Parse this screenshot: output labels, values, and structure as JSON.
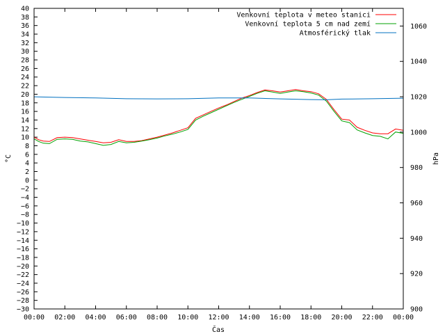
{
  "chart_data": {
    "type": "line",
    "xlabel": "Čas",
    "ylabel_left": "°C",
    "ylabel_right": "hPa",
    "x_ticks": [
      "00:00",
      "02:00",
      "04:00",
      "06:00",
      "08:00",
      "10:00",
      "12:00",
      "14:00",
      "16:00",
      "18:00",
      "20:00",
      "22:00",
      "00:00"
    ],
    "ylim_left": [
      -30,
      40
    ],
    "ylim_right": [
      900,
      1070
    ],
    "y_tick_step_left": 2,
    "y_ticks_right": [
      900,
      920,
      940,
      960,
      980,
      1000,
      1020,
      1040,
      1060
    ],
    "grid": false,
    "legend_position": "top-right",
    "series": [
      {
        "name": "Venkovní teplota v meteo stanici",
        "axis": "left",
        "color": "#ff0000",
        "x": [
          0.0,
          0.3,
          0.6,
          1.0,
          1.5,
          2.0,
          2.5,
          3.0,
          3.5,
          4.0,
          4.5,
          5.0,
          5.5,
          6.0,
          6.5,
          7.0,
          7.5,
          8.0,
          8.5,
          9.0,
          9.5,
          10.0,
          10.5,
          11.0,
          11.5,
          12.0,
          12.5,
          13.0,
          13.5,
          14.0,
          14.5,
          15.0,
          15.5,
          16.0,
          16.5,
          17.0,
          17.5,
          18.0,
          18.5,
          19.0,
          19.5,
          20.0,
          20.5,
          21.0,
          21.5,
          22.0,
          22.5,
          23.0,
          23.5,
          24.0
        ],
        "values": [
          10.0,
          9.4,
          9.1,
          9.0,
          9.9,
          10.0,
          9.9,
          9.6,
          9.3,
          9.0,
          8.7,
          8.8,
          9.4,
          9.0,
          9.0,
          9.2,
          9.6,
          10.0,
          10.5,
          11.0,
          11.6,
          12.2,
          14.4,
          15.2,
          16.0,
          16.8,
          17.5,
          18.3,
          19.1,
          19.7,
          20.4,
          21.0,
          20.8,
          20.5,
          20.8,
          21.1,
          20.8,
          20.6,
          20.1,
          18.8,
          16.4,
          14.2,
          14.0,
          12.3,
          11.6,
          11.0,
          10.8,
          10.8,
          11.9,
          11.6
        ]
      },
      {
        "name": "Venkovní teplota 5 cm nad zemí",
        "axis": "left",
        "color": "#00a000",
        "x": [
          0.0,
          0.3,
          0.6,
          1.0,
          1.5,
          2.0,
          2.5,
          3.0,
          3.5,
          4.0,
          4.5,
          5.0,
          5.5,
          6.0,
          6.5,
          7.0,
          7.5,
          8.0,
          8.5,
          9.0,
          9.5,
          10.0,
          10.5,
          11.0,
          11.5,
          12.0,
          12.5,
          13.0,
          13.5,
          14.0,
          14.5,
          15.0,
          15.5,
          16.0,
          16.5,
          17.0,
          17.5,
          18.0,
          18.5,
          19.0,
          19.5,
          20.0,
          20.5,
          21.0,
          21.5,
          22.0,
          22.5,
          23.0,
          23.5,
          24.0
        ],
        "values": [
          9.6,
          9.0,
          8.6,
          8.5,
          9.5,
          9.6,
          9.5,
          9.1,
          8.9,
          8.5,
          8.1,
          8.3,
          9.0,
          8.7,
          8.8,
          9.1,
          9.4,
          9.8,
          10.3,
          10.7,
          11.2,
          11.8,
          14.0,
          14.9,
          15.7,
          16.5,
          17.3,
          18.1,
          18.8,
          19.5,
          20.2,
          20.8,
          20.5,
          20.2,
          20.5,
          20.8,
          20.6,
          20.3,
          19.8,
          18.4,
          16.0,
          13.8,
          13.4,
          11.7,
          11.0,
          10.4,
          10.2,
          9.6,
          11.2,
          10.9
        ]
      },
      {
        "name": "Atmosférický tlak",
        "axis": "right",
        "color": "#0070c0",
        "x": [
          0.0,
          2.0,
          4.0,
          6.0,
          8.0,
          10.0,
          12.0,
          14.0,
          16.0,
          18.0,
          19.0,
          20.0,
          22.0,
          24.0
        ],
        "values": [
          1020.0,
          1019.6,
          1019.3,
          1018.9,
          1018.8,
          1018.9,
          1019.3,
          1019.3,
          1018.8,
          1018.4,
          1018.3,
          1018.7,
          1018.9,
          1019.2
        ]
      }
    ]
  }
}
